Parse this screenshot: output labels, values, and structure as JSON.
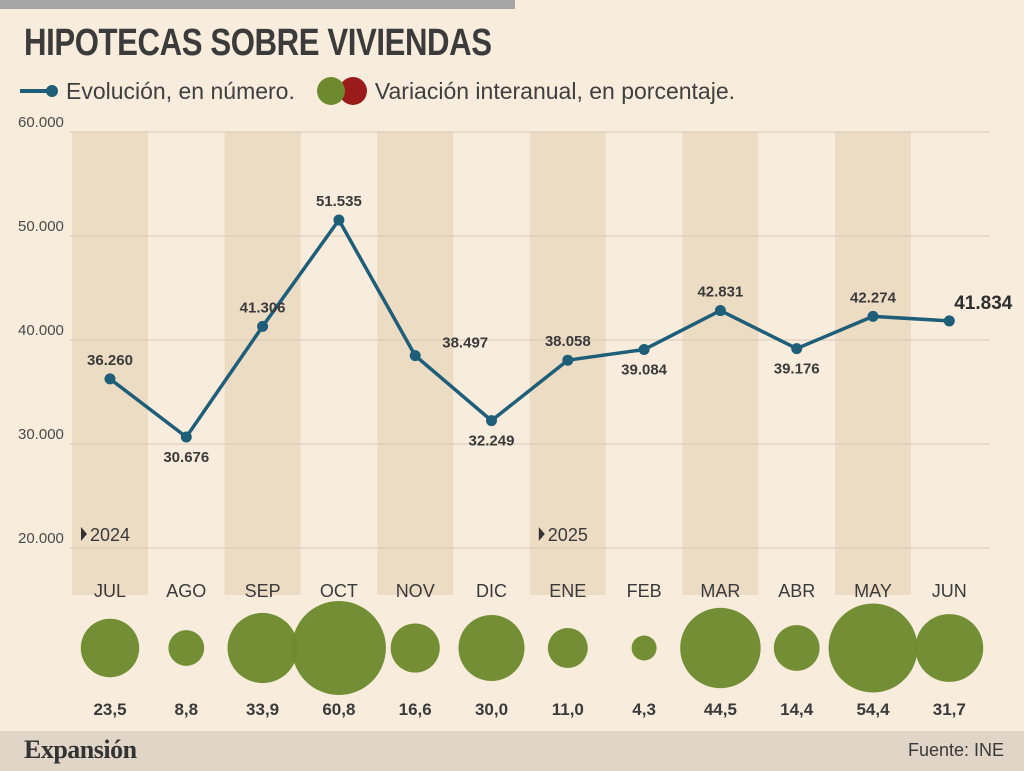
{
  "title": "HIPOTECAS SOBRE VIVIENDAS",
  "legend": {
    "line_label": "Evolución, en número.",
    "circle_label": "Variación interanual, en porcentaje.",
    "line_color": "#1e5e78",
    "positive_color": "#6e8a2e",
    "negative_color": "#9b1b1b"
  },
  "footer": {
    "brand": "Expansión",
    "source": "Fuente: INE"
  },
  "chart_data": {
    "type": "line",
    "categories": [
      "JUL",
      "AGO",
      "SEP",
      "OCT",
      "NOV",
      "DIC",
      "ENE",
      "FEB",
      "MAR",
      "ABR",
      "MAY",
      "JUN"
    ],
    "series": [
      {
        "name": "Evolución, en número.",
        "values": [
          36260,
          30676,
          41306,
          51535,
          38497,
          32249,
          38058,
          39084,
          42831,
          39176,
          42274,
          41834
        ],
        "labels": [
          "36.260",
          "30.676",
          "41.306",
          "51.535",
          "38.497",
          "32.249",
          "38.058",
          "39.084",
          "42.831",
          "39.176",
          "42.274",
          "41.834"
        ]
      },
      {
        "name": "Variación interanual, en porcentaje.",
        "values": [
          23.5,
          8.8,
          33.9,
          60.8,
          16.6,
          30.0,
          11.0,
          4.3,
          44.5,
          14.4,
          54.4,
          31.7
        ],
        "labels": [
          "23,5",
          "8,8",
          "33,9",
          "60,8",
          "16,6",
          "30,0",
          "11,0",
          "4,3",
          "44,5",
          "14,4",
          "54,4",
          "31,7"
        ]
      }
    ],
    "yticks": [
      "60.000",
      "50.000",
      "40.000",
      "30.000",
      "20.000"
    ],
    "ytick_values": [
      60000,
      50000,
      40000,
      30000,
      20000
    ],
    "ylim": [
      20000,
      60000
    ],
    "year_markers": [
      {
        "label": "2024",
        "category": "JUL"
      },
      {
        "label": "2025",
        "category": "ENE"
      }
    ],
    "grid": true,
    "alternating_column_shading": true
  }
}
